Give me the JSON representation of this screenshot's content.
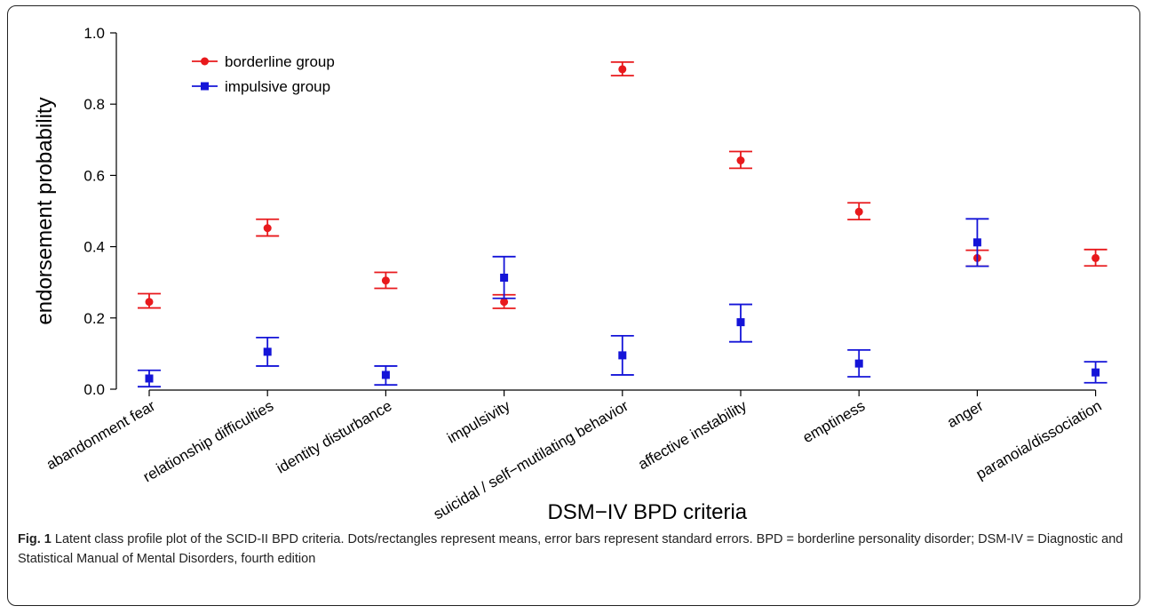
{
  "chart_data": {
    "type": "scatter",
    "title": "",
    "xlabel": "DSM−IV BPD criteria",
    "ylabel": "endorsement probability",
    "ylim": [
      0.0,
      1.0
    ],
    "yticks": [
      "0.0",
      "0.2",
      "0.4",
      "0.6",
      "0.8",
      "1.0"
    ],
    "grid": false,
    "legend_position": "top-left",
    "categories": [
      "abandonment fear",
      "relationship difficulties",
      "identity disturbance",
      "impulsivity",
      "suicidal / self−mutilating behavior",
      "affective instability",
      "emptiness",
      "anger",
      "paranoia/dissociation"
    ],
    "series": [
      {
        "name": "borderline group",
        "color": "#e8191c",
        "marker": "circle",
        "values": [
          0.245,
          0.452,
          0.305,
          0.245,
          0.898,
          0.642,
          0.498,
          0.368,
          0.368
        ],
        "se_low": [
          0.228,
          0.43,
          0.283,
          0.227,
          0.88,
          0.62,
          0.476,
          0.345,
          0.346
        ],
        "se_high": [
          0.268,
          0.477,
          0.328,
          0.265,
          0.918,
          0.667,
          0.523,
          0.39,
          0.392
        ]
      },
      {
        "name": "impulsive group",
        "color": "#1414d8",
        "marker": "square",
        "values": [
          0.03,
          0.105,
          0.04,
          0.313,
          0.095,
          0.188,
          0.072,
          0.412,
          0.047
        ],
        "se_low": [
          0.007,
          0.065,
          0.012,
          0.255,
          0.04,
          0.133,
          0.035,
          0.345,
          0.018
        ],
        "se_high": [
          0.053,
          0.145,
          0.065,
          0.372,
          0.15,
          0.238,
          0.11,
          0.478,
          0.077
        ]
      }
    ]
  },
  "caption": {
    "label": "Fig. 1",
    "text": " Latent class profile plot of the SCID-II BPD criteria. Dots/rectangles represent means, error bars represent standard errors. BPD = borderline personality disorder; DSM-IV = Diagnostic and Statistical Manual of Mental Disorders, fourth edition"
  }
}
